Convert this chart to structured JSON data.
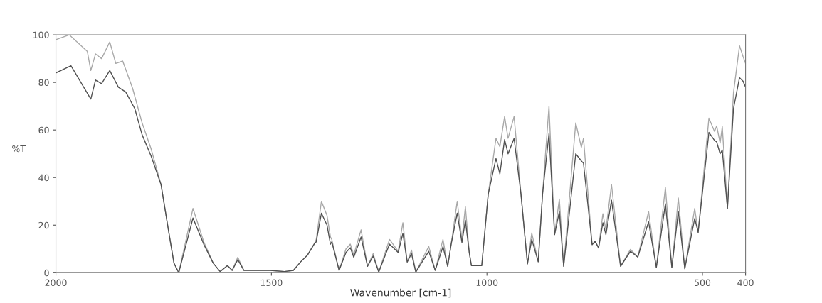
{
  "chart_data": {
    "type": "line",
    "xlabel": "Wavenumber [cm-1]",
    "ylabel": "%T",
    "xlim": [
      2000,
      400
    ],
    "xticks": [
      2000,
      1500,
      1000,
      500,
      400
    ],
    "ylim": [
      0,
      100
    ],
    "yticks": [
      0,
      20,
      40,
      60,
      80,
      100
    ],
    "grid": false,
    "series": [
      {
        "color": "#a8a8a8",
        "x": [
          2000,
          1969,
          1927,
          1919,
          1908,
          1894,
          1875,
          1861,
          1845,
          1822,
          1800,
          1779,
          1756,
          1739,
          1726,
          1715,
          1682,
          1657,
          1635,
          1619,
          1602,
          1591,
          1578,
          1564,
          1503,
          1470,
          1449,
          1432,
          1416,
          1401,
          1396,
          1384,
          1371,
          1363,
          1360,
          1343,
          1327,
          1317,
          1309,
          1292,
          1277,
          1264,
          1251,
          1226,
          1206,
          1195,
          1185,
          1175,
          1165,
          1135,
          1120,
          1102,
          1091,
          1083,
          1069,
          1058,
          1050,
          1041,
          1036,
          1012,
          997,
          979,
          970,
          959,
          951,
          937,
          921,
          906,
          896,
          881,
          871,
          856,
          843,
          832,
          822,
          794,
          781,
          776,
          756,
          749,
          741,
          731,
          724,
          711,
          690,
          667,
          650,
          625,
          607,
          586,
          571,
          556,
          541,
          518,
          510,
          485,
          472,
          467,
          459,
          454,
          442,
          428,
          414,
          406,
          400
        ],
        "values": [
          98,
          100,
          93,
          85,
          92,
          90,
          97,
          88,
          89,
          77.5,
          63,
          52,
          37,
          18,
          4,
          0,
          27,
          13,
          4,
          0.5,
          3,
          1,
          6.5,
          1,
          1,
          0.5,
          1,
          4.6,
          7.5,
          12,
          14,
          30,
          24,
          15,
          14,
          1,
          10,
          12,
          7.5,
          18,
          2.7,
          8,
          0.3,
          14,
          9,
          21,
          4.5,
          9.5,
          0.3,
          11,
          1,
          14,
          2.7,
          12,
          30,
          14,
          27.7,
          8.5,
          3,
          3,
          33,
          56.5,
          53,
          65.7,
          56.5,
          65.7,
          33,
          3.7,
          16.7,
          4.6,
          33,
          70,
          16,
          31,
          2.7,
          63,
          52.7,
          56.5,
          11.8,
          13.2,
          10.4,
          24.8,
          18,
          37,
          2.7,
          9.8,
          6.6,
          25.7,
          2.2,
          35.8,
          2.2,
          31.4,
          1.7,
          27,
          17,
          65,
          59.4,
          61.7,
          54.5,
          61.4,
          27,
          75.6,
          95.4,
          91,
          88
        ]
      },
      {
        "color": "#505050",
        "x": [
          2000,
          1965,
          1919,
          1908,
          1894,
          1875,
          1855,
          1838,
          1817,
          1800,
          1779,
          1756,
          1739,
          1726,
          1715,
          1682,
          1657,
          1635,
          1619,
          1602,
          1591,
          1578,
          1564,
          1503,
          1470,
          1449,
          1432,
          1416,
          1401,
          1396,
          1384,
          1371,
          1363,
          1360,
          1343,
          1327,
          1317,
          1309,
          1292,
          1277,
          1264,
          1251,
          1226,
          1206,
          1195,
          1185,
          1175,
          1165,
          1135,
          1120,
          1102,
          1091,
          1083,
          1069,
          1058,
          1050,
          1041,
          1036,
          1012,
          997,
          979,
          970,
          959,
          951,
          937,
          921,
          906,
          896,
          881,
          871,
          856,
          843,
          832,
          822,
          794,
          781,
          776,
          756,
          749,
          741,
          731,
          724,
          711,
          690,
          667,
          650,
          625,
          607,
          586,
          571,
          556,
          541,
          518,
          510,
          485,
          472,
          467,
          459,
          454,
          442,
          428,
          414,
          406,
          400
        ],
        "values": [
          84,
          87,
          73,
          81,
          79.5,
          85,
          78,
          76,
          69,
          58,
          49,
          37,
          18,
          4,
          0,
          23,
          12,
          4,
          0.5,
          3,
          1,
          5.5,
          1,
          1,
          0.5,
          1,
          4.6,
          7.5,
          12,
          13,
          25,
          20,
          12,
          13,
          1,
          8.5,
          10.5,
          6.5,
          15,
          2.7,
          7,
          0.3,
          12,
          8.5,
          16.5,
          4.5,
          8,
          0.3,
          9,
          1,
          11,
          2.7,
          12,
          25,
          12.7,
          22,
          8.5,
          3,
          3,
          33,
          48,
          41.5,
          56,
          50,
          56.5,
          33,
          3.7,
          14,
          4.6,
          33,
          58.5,
          16,
          25.7,
          2.7,
          50,
          47,
          46,
          11.8,
          13.2,
          10.4,
          21,
          16,
          30.5,
          2.7,
          9,
          6.6,
          21.4,
          2.2,
          29,
          2.2,
          25.7,
          1.7,
          22.8,
          17,
          59,
          55.6,
          55,
          50,
          51.6,
          27,
          69,
          82,
          80.6,
          78
        ]
      }
    ]
  }
}
